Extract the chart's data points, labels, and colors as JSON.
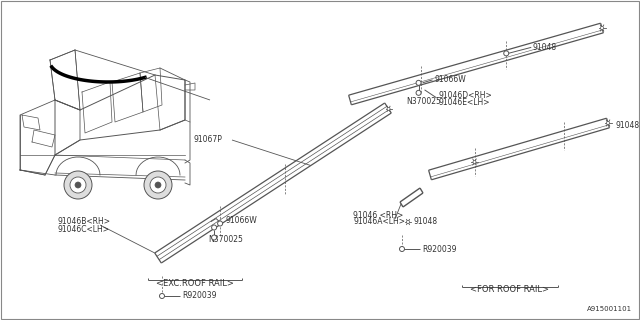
{
  "bg_color": "#ffffff",
  "diagram_id": "A915001101",
  "line_color": "#555555",
  "text_color": "#333333",
  "bold_color": "#000000",
  "font_size": 5.5,
  "parts": {
    "91046B_RH": "91046B<RH>",
    "91046C_LH": "91046C<LH>",
    "91046_RH": "91046 <RH>",
    "91046A_LH": "91046A<LH>",
    "91046D_RH": "91046D<RH>",
    "91046E_LH": "91046E<LH>",
    "91066W": "91066W",
    "91067P": "91067P",
    "91048": "91048",
    "N370025": "N370025",
    "R920039": "R920039"
  },
  "labels": {
    "exc_roof": "<EXC.ROOF RAIL>",
    "for_roof": "<FOR ROOF RAIL>"
  }
}
